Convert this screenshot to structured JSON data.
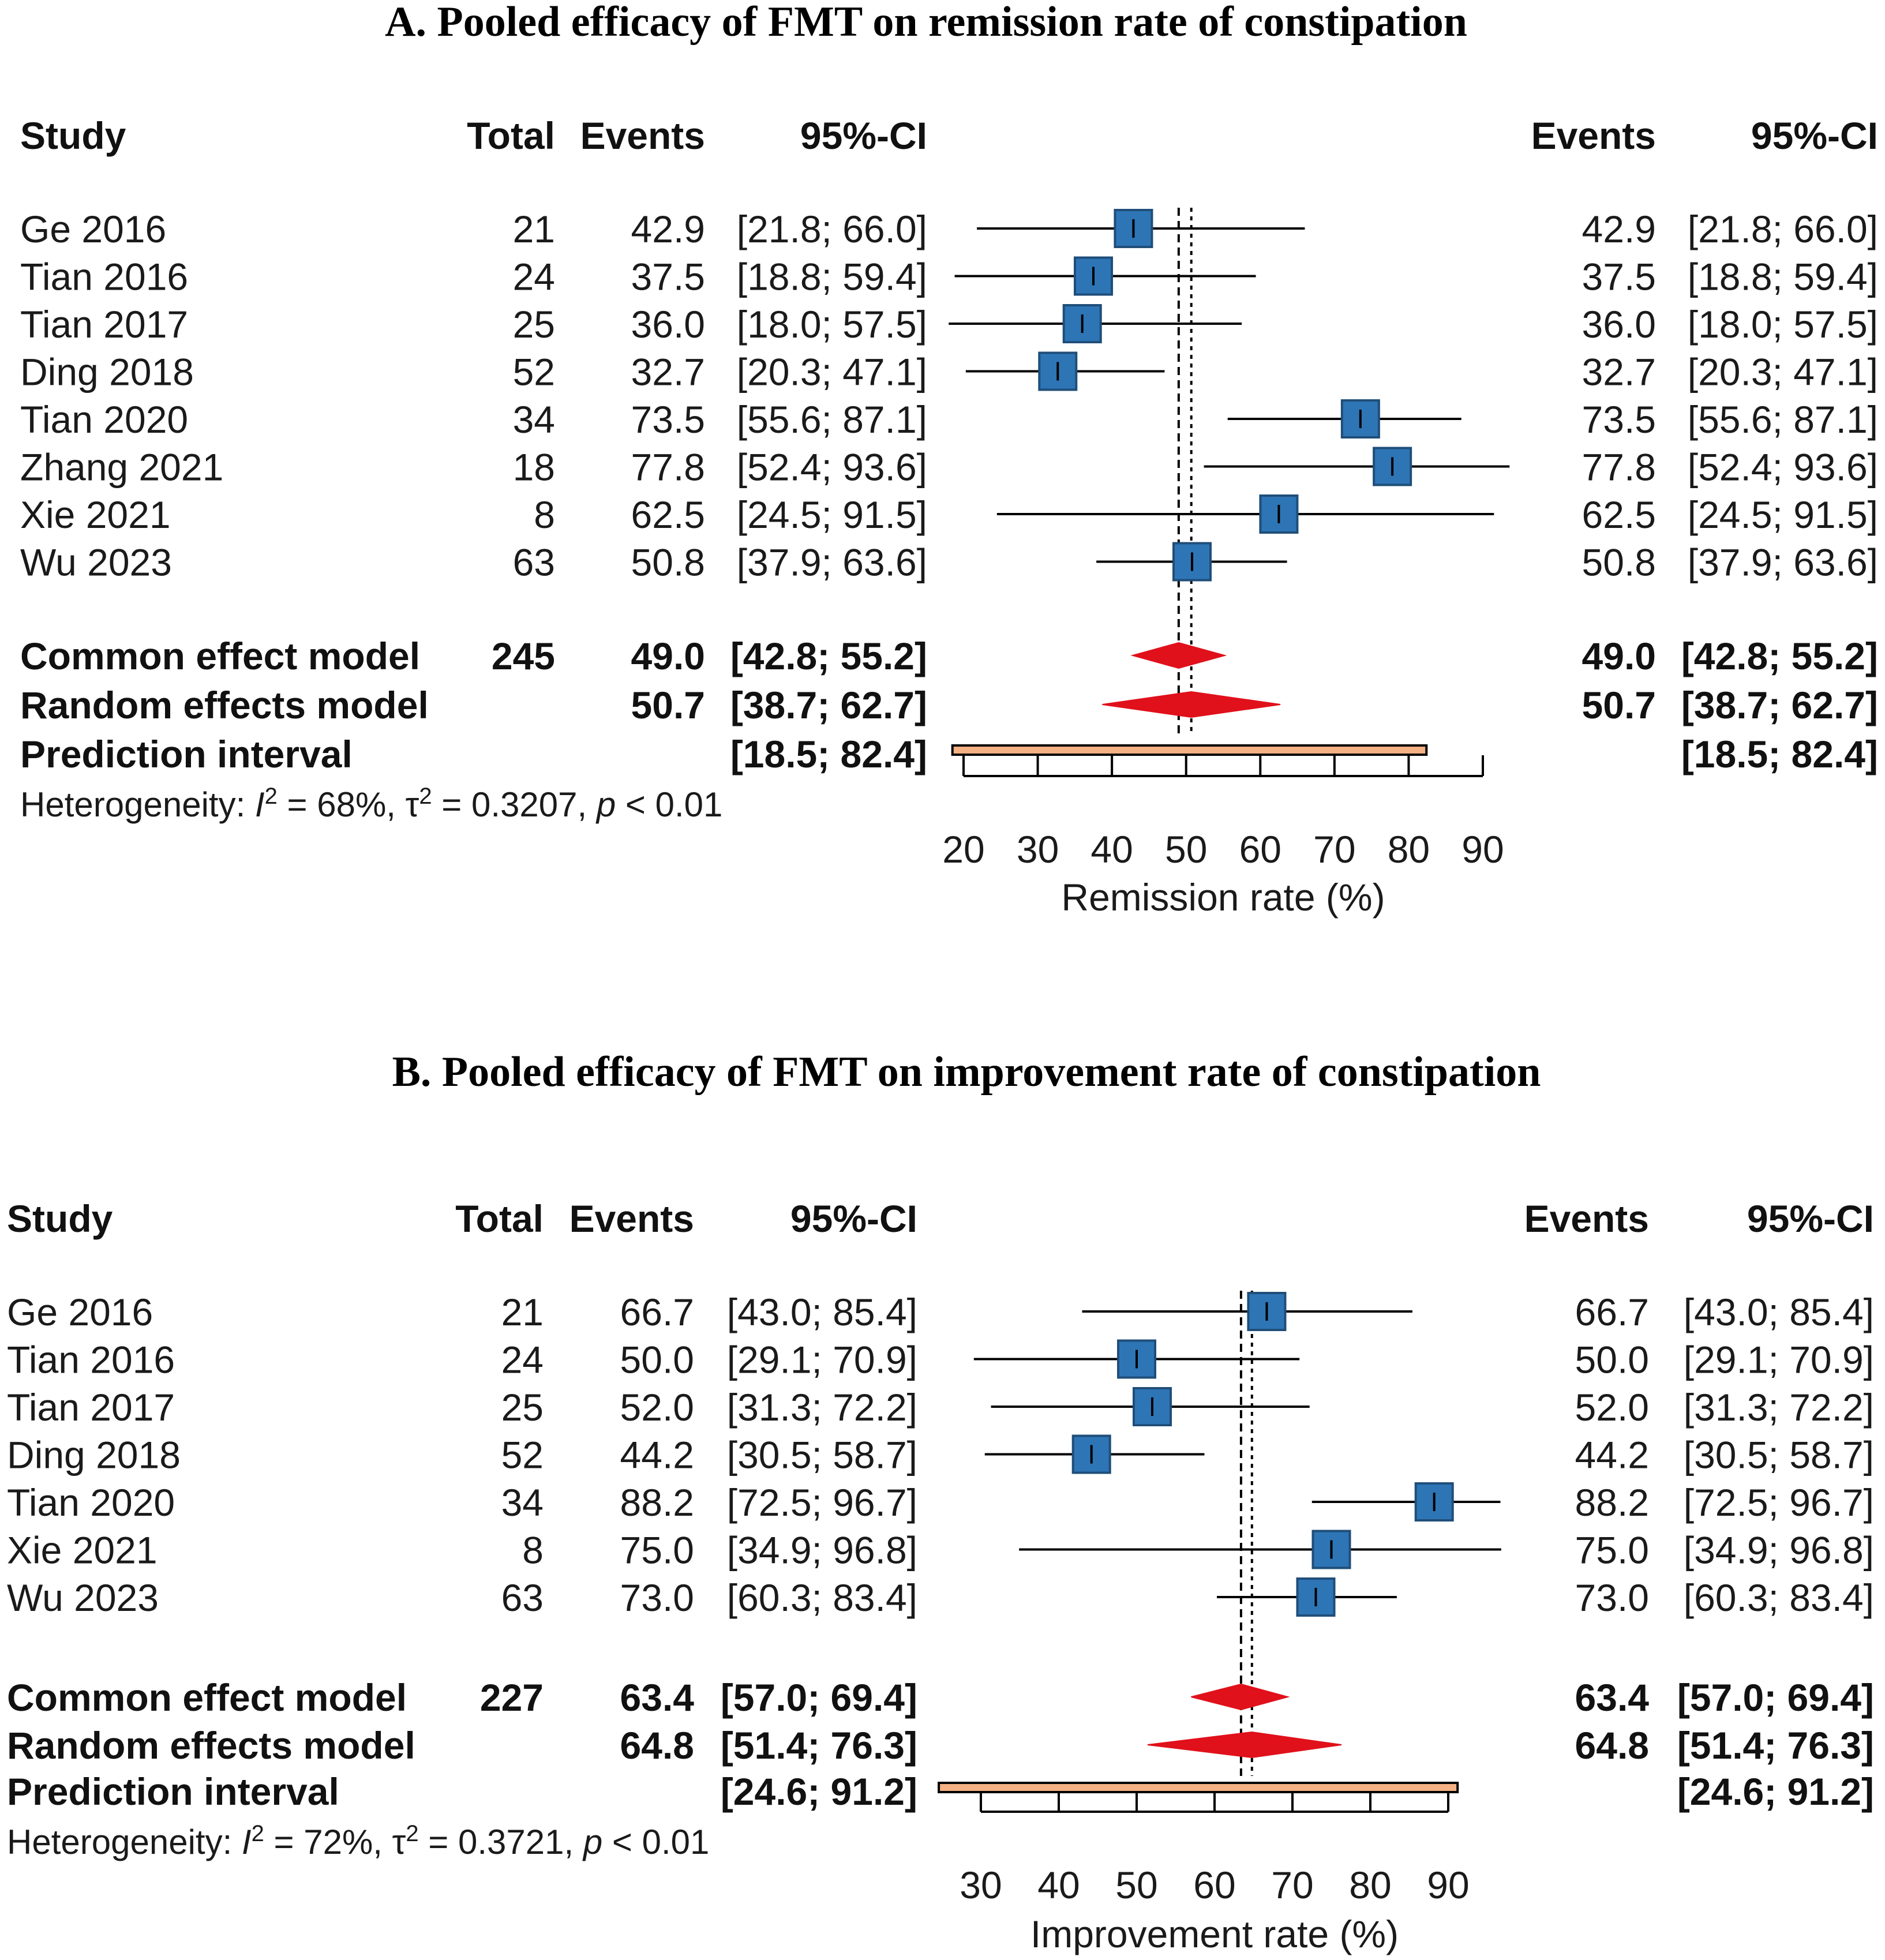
{
  "chart_data": [
    {
      "type": "forest",
      "title": "A. Pooled efficacy of FMT on remission rate of constipation",
      "left_headers": {
        "study": "Study",
        "total": "Total",
        "events": "Events",
        "ci": "95%-CI"
      },
      "right_headers": {
        "events": "Events",
        "ci": "95%-CI"
      },
      "studies": [
        {
          "name": "Ge 2016",
          "total": "21",
          "events": "42.9",
          "ci": "[21.8; 66.0]",
          "est": 42.9,
          "lo": 21.8,
          "hi": 66.0,
          "weight": 1.0
        },
        {
          "name": "Tian 2016",
          "total": "24",
          "events": "37.5",
          "ci": "[18.8; 59.4]",
          "est": 37.5,
          "lo": 18.8,
          "hi": 59.4,
          "weight": 1.0
        },
        {
          "name": "Tian 2017",
          "total": "25",
          "events": "36.0",
          "ci": "[18.0; 57.5]",
          "est": 36.0,
          "lo": 18.0,
          "hi": 57.5,
          "weight": 1.0
        },
        {
          "name": "Ding 2018",
          "total": "52",
          "events": "32.7",
          "ci": "[20.3; 47.1]",
          "est": 32.7,
          "lo": 20.3,
          "hi": 47.1,
          "weight": 1.0
        },
        {
          "name": "Tian 2020",
          "total": "34",
          "events": "73.5",
          "ci": "[55.6; 87.1]",
          "est": 73.5,
          "lo": 55.6,
          "hi": 87.1,
          "weight": 1.0
        },
        {
          "name": "Zhang 2021",
          "total": "18",
          "events": "77.8",
          "ci": "[52.4; 93.6]",
          "est": 77.8,
          "lo": 52.4,
          "hi": 93.6,
          "weight": 1.0
        },
        {
          "name": "Xie 2021",
          "total": "8",
          "events": "62.5",
          "ci": "[24.5; 91.5]",
          "est": 62.5,
          "lo": 24.5,
          "hi": 91.5,
          "weight": 1.0
        },
        {
          "name": "Wu 2023",
          "total": "63",
          "events": "50.8",
          "ci": "[37.9; 63.6]",
          "est": 50.8,
          "lo": 37.9,
          "hi": 63.6,
          "weight": 1.0
        }
      ],
      "common": {
        "name": "Common effect model",
        "total": "245",
        "events": "49.0",
        "ci": "[42.8; 55.2]",
        "est": 49.0,
        "lo": 42.8,
        "hi": 55.2
      },
      "random": {
        "name": "Random effects model",
        "events": "50.7",
        "ci": "[38.7; 62.7]",
        "est": 50.7,
        "lo": 38.7,
        "hi": 62.7
      },
      "prediction": {
        "name": "Prediction interval",
        "ci": "[18.5; 82.4]",
        "lo": 18.5,
        "hi": 82.4
      },
      "heterogeneity": {
        "prefix": "Heterogeneity: ",
        "i_sym": "I",
        "sq": "2",
        "i_val": " = 68%, ",
        "tau_sym": "τ",
        "tau_val": " = 0.3207, ",
        "p_sym": "p",
        "p_val": " < 0.01"
      },
      "xticks": [
        20,
        30,
        40,
        50,
        60,
        70,
        80,
        90
      ],
      "xlim": [
        20,
        90
      ],
      "xlabel": "Remission rate (%)"
    },
    {
      "type": "forest",
      "title": "B. Pooled efficacy of FMT on improvement rate of constipation",
      "left_headers": {
        "study": "Study",
        "total": "Total",
        "events": "Events",
        "ci": "95%-CI"
      },
      "right_headers": {
        "events": "Events",
        "ci": "95%-CI"
      },
      "studies": [
        {
          "name": "Ge 2016",
          "total": "21",
          "events": "66.7",
          "ci": "[43.0; 85.4]",
          "est": 66.7,
          "lo": 43.0,
          "hi": 85.4,
          "weight": 1.0
        },
        {
          "name": "Tian 2016",
          "total": "24",
          "events": "50.0",
          "ci": "[29.1; 70.9]",
          "est": 50.0,
          "lo": 29.1,
          "hi": 70.9,
          "weight": 1.0
        },
        {
          "name": "Tian 2017",
          "total": "25",
          "events": "52.0",
          "ci": "[31.3; 72.2]",
          "est": 52.0,
          "lo": 31.3,
          "hi": 72.2,
          "weight": 1.0
        },
        {
          "name": "Ding 2018",
          "total": "52",
          "events": "44.2",
          "ci": "[30.5; 58.7]",
          "est": 44.2,
          "lo": 30.5,
          "hi": 58.7,
          "weight": 1.0
        },
        {
          "name": "Tian 2020",
          "total": "34",
          "events": "88.2",
          "ci": "[72.5; 96.7]",
          "est": 88.2,
          "lo": 72.5,
          "hi": 96.7,
          "weight": 1.0
        },
        {
          "name": "Xie 2021",
          "total": "8",
          "events": "75.0",
          "ci": "[34.9; 96.8]",
          "est": 75.0,
          "lo": 34.9,
          "hi": 96.8,
          "weight": 1.0
        },
        {
          "name": "Wu 2023",
          "total": "63",
          "events": "73.0",
          "ci": "[60.3; 83.4]",
          "est": 73.0,
          "lo": 60.3,
          "hi": 83.4,
          "weight": 1.0
        }
      ],
      "common": {
        "name": "Common effect model",
        "total": "227",
        "events": "63.4",
        "ci": "[57.0; 69.4]",
        "est": 63.4,
        "lo": 57.0,
        "hi": 69.4
      },
      "random": {
        "name": "Random effects model",
        "events": "64.8",
        "ci": "[51.4; 76.3]",
        "est": 64.8,
        "lo": 51.4,
        "hi": 76.3
      },
      "prediction": {
        "name": "Prediction interval",
        "ci": "[24.6; 91.2]",
        "lo": 24.6,
        "hi": 91.2
      },
      "heterogeneity": {
        "prefix": "Heterogeneity: ",
        "i_sym": "I",
        "sq": "2",
        "i_val": " = 72%, ",
        "tau_sym": "τ",
        "tau_val": " = 0.3721, ",
        "p_sym": "p",
        "p_val": " < 0.01"
      },
      "xticks": [
        30,
        40,
        50,
        60,
        70,
        80,
        90
      ],
      "xlim": [
        30,
        90
      ],
      "xlabel": "Improvement rate (%)"
    }
  ],
  "colors": {
    "square": "#2e75b6",
    "square_edge": "#1f4e79",
    "diamond": "#e0111b",
    "prediction_fill": "#f4b183",
    "prediction_edge": "#000000",
    "line": "#000000"
  }
}
